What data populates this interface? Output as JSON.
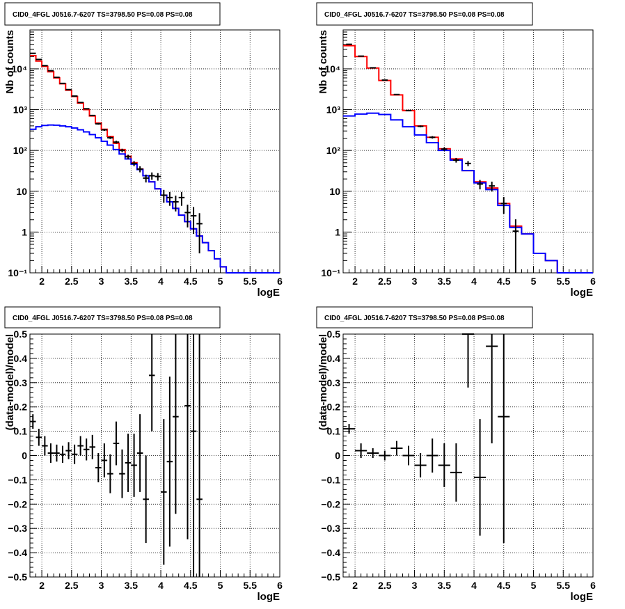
{
  "chart_data": [
    {
      "type": "histogram",
      "title": "CID0_4FGL J0516.7-6207 TS=3798.50 PS=0.08 PS=0.08",
      "xlabel": "logE",
      "ylabel": "Nb of counts",
      "yscale": "log",
      "xlim": [
        1.8,
        6.0
      ],
      "ylim": [
        0.1,
        90000
      ],
      "grid": true,
      "xticks": [
        "2",
        "2.5",
        "3",
        "3.5",
        "4",
        "4.5",
        "5",
        "5.5",
        "6"
      ],
      "yticks": [
        "10⁻¹",
        "1",
        "10",
        "10²",
        "10³",
        "10⁴"
      ],
      "bin_edges": [
        1.8,
        1.9,
        2.0,
        2.1,
        2.2,
        2.3,
        2.4,
        2.5,
        2.6,
        2.7,
        2.8,
        2.9,
        3.0,
        3.1,
        3.2,
        3.3,
        3.4,
        3.5,
        3.6,
        3.7,
        3.8,
        3.9,
        4.0,
        4.1,
        4.2,
        4.3,
        4.4,
        4.5,
        4.6,
        4.7,
        4.8,
        4.9,
        5.0,
        5.1,
        5.2,
        5.3,
        5.4,
        5.5,
        5.6,
        5.7,
        5.8,
        5.9,
        6.0
      ],
      "series": [
        {
          "color": "#ff0000",
          "style": "step",
          "values": [
            21000,
            15500,
            11500,
            8500,
            6000,
            4300,
            3000,
            2100,
            1450,
            1000,
            700,
            470,
            330,
            220,
            150,
            105,
            72,
            50,
            35,
            24,
            17,
            11.5,
            8,
            5.5,
            3.8,
            2.6,
            1.8,
            1.2,
            0.8,
            0.55,
            0.35,
            0.22,
            0.14,
            0.1,
            0.1,
            0.1,
            0.1,
            0.1,
            0.1,
            0.1,
            0.1,
            0.1
          ]
        },
        {
          "color": "#0000ff",
          "style": "step",
          "values": [
            330,
            380,
            410,
            420,
            415,
            400,
            380,
            355,
            320,
            285,
            245,
            205,
            168,
            135,
            105,
            82,
            62,
            46,
            34,
            24,
            17,
            11.5,
            8,
            5.5,
            3.8,
            2.6,
            1.8,
            1.2,
            0.8,
            0.55,
            0.35,
            0.22,
            0.14,
            0.1,
            0.1,
            0.1,
            0.1,
            0.1,
            0.1,
            0.1,
            0.1,
            0.1
          ]
        }
      ],
      "points": {
        "color": "#000000",
        "x": [
          1.85,
          1.95,
          2.05,
          2.15,
          2.25,
          2.35,
          2.45,
          2.55,
          2.65,
          2.75,
          2.85,
          2.95,
          3.05,
          3.15,
          3.25,
          3.35,
          3.45,
          3.55,
          3.65,
          3.75,
          3.85,
          3.95,
          4.05,
          4.15,
          4.25,
          4.35,
          4.45,
          4.55,
          4.65
        ],
        "y": [
          24000,
          17000,
          12000,
          9000,
          6200,
          4400,
          3100,
          2150,
          1500,
          1050,
          720,
          450,
          320,
          205,
          160,
          100,
          70,
          48,
          35,
          21,
          24,
          23,
          8,
          7,
          5.5,
          7,
          3,
          2.5,
          1.6
        ],
        "yerr": [
          155,
          130,
          110,
          95,
          79,
          66,
          56,
          46,
          39,
          32,
          27,
          21,
          18,
          14,
          13,
          10,
          8.4,
          6.9,
          5.9,
          4.6,
          4.9,
          4.8,
          2.8,
          2.6,
          2.3,
          2.6,
          1.7,
          1.6,
          1.3
        ]
      }
    },
    {
      "type": "histogram",
      "title": "CID0_4FGL J0516.7-6207 TS=3798.50 PS=0.08 PS=0.08",
      "xlabel": "logE",
      "ylabel": "Nb of counts",
      "yscale": "log",
      "xlim": [
        1.8,
        6.0
      ],
      "ylim": [
        0.1,
        90000
      ],
      "grid": true,
      "xticks": [
        "2",
        "2.5",
        "3",
        "3.5",
        "4",
        "4.5",
        "5",
        "5.5",
        "6"
      ],
      "yticks": [
        "10⁻¹",
        "1",
        "10",
        "10²",
        "10³",
        "10⁴"
      ],
      "bin_edges": [
        1.8,
        2.0,
        2.2,
        2.4,
        2.6,
        2.8,
        3.0,
        3.2,
        3.4,
        3.6,
        3.8,
        4.0,
        4.2,
        4.4,
        4.6,
        4.8,
        5.0,
        5.2,
        5.4,
        5.6,
        5.8,
        6.0
      ],
      "series": [
        {
          "color": "#ff0000",
          "style": "step",
          "values": [
            37000,
            20000,
            10500,
            5200,
            2300,
            950,
            400,
            210,
            110,
            62,
            32,
            17,
            12,
            5,
            1.4,
            0.9,
            0.3,
            0.2,
            0.1,
            0.1,
            0.1
          ]
        },
        {
          "color": "#0000ff",
          "style": "step",
          "values": [
            700,
            780,
            820,
            760,
            560,
            380,
            240,
            155,
            100,
            58,
            32,
            16,
            11,
            4.5,
            1.3,
            0.9,
            0.3,
            0.2,
            0.1,
            0.1,
            0.1
          ]
        }
      ],
      "points": {
        "color": "#000000",
        "x": [
          1.9,
          2.1,
          2.3,
          2.5,
          2.7,
          2.9,
          3.1,
          3.3,
          3.5,
          3.7,
          3.9,
          4.1,
          4.3,
          4.5,
          4.7
        ],
        "y": [
          40000,
          20500,
          10600,
          5300,
          2350,
          950,
          390,
          210,
          108,
          58,
          48,
          15,
          13.5,
          5,
          1.05
        ],
        "yerr": [
          200,
          143,
          103,
          73,
          48,
          31,
          20,
          14.5,
          10.4,
          7.6,
          6.9,
          3.9,
          3.7,
          2.2,
          1.0
        ]
      }
    },
    {
      "type": "scatter",
      "title": "CID0_4FGL J0516.7-6207 TS=3798.50 PS=0.08 PS=0.08",
      "xlabel": "logE",
      "ylabel": "(data-model)/model",
      "xlim": [
        1.8,
        6.0
      ],
      "ylim": [
        -0.5,
        0.5
      ],
      "grid": true,
      "xticks": [
        "2",
        "2.5",
        "3",
        "3.5",
        "4",
        "4.5",
        "5",
        "5.5",
        "6"
      ],
      "yticks": [
        "−0.5",
        "−0.4",
        "−0.3",
        "−0.2",
        "−0.1",
        "0",
        "0.1",
        "0.2",
        "0.3",
        "0.4",
        "0.5"
      ],
      "points": {
        "color": "#000000",
        "xerr": 0.05,
        "x": [
          1.85,
          1.95,
          2.05,
          2.15,
          2.25,
          2.35,
          2.45,
          2.55,
          2.65,
          2.75,
          2.85,
          2.95,
          3.05,
          3.15,
          3.25,
          3.35,
          3.45,
          3.55,
          3.65,
          3.75,
          3.85,
          4.05,
          4.15,
          4.25,
          4.45,
          4.55,
          4.65
        ],
        "y": [
          0.14,
          0.075,
          0.04,
          0.01,
          0.01,
          0.005,
          0.02,
          0.005,
          0.04,
          0.025,
          0.035,
          -0.05,
          -0.02,
          -0.075,
          0.05,
          -0.075,
          -0.03,
          -0.04,
          0.01,
          -0.18,
          0.33,
          -0.15,
          -0.025,
          0.16,
          0.205,
          0.1,
          -0.18
        ],
        "yerr": [
          0.03,
          0.035,
          0.04,
          0.04,
          0.035,
          0.035,
          0.035,
          0.04,
          0.04,
          0.045,
          0.05,
          0.06,
          0.07,
          0.08,
          0.09,
          0.1,
          0.12,
          0.13,
          0.16,
          0.18,
          0.23,
          0.3,
          0.35,
          0.4,
          0.55,
          0.6,
          0.7
        ]
      }
    },
    {
      "type": "scatter",
      "title": "CID0_4FGL J0516.7-6207 TS=3798.50 PS=0.08 PS=0.08",
      "xlabel": "logE",
      "ylabel": "(data-model)/model",
      "xlim": [
        1.8,
        6.0
      ],
      "ylim": [
        -0.5,
        0.5
      ],
      "grid": true,
      "xticks": [
        "2",
        "2.5",
        "3",
        "3.5",
        "4",
        "4.5",
        "5",
        "5.5",
        "6"
      ],
      "yticks": [
        "−0.5",
        "−0.4",
        "−0.3",
        "−0.2",
        "−0.1",
        "0",
        "0.1",
        "0.2",
        "0.3",
        "0.4",
        "0.5"
      ],
      "points": {
        "color": "#000000",
        "xerr": 0.1,
        "x": [
          1.9,
          2.1,
          2.3,
          2.5,
          2.7,
          2.9,
          3.1,
          3.3,
          3.5,
          3.7,
          3.9,
          4.1,
          4.3,
          4.5
        ],
        "y": [
          0.11,
          0.02,
          0.01,
          0.0,
          0.03,
          0.0,
          -0.04,
          0.0,
          -0.04,
          -0.07,
          0.5,
          -0.09,
          0.45,
          0.16
        ],
        "yerr": [
          0.02,
          0.03,
          0.02,
          0.02,
          0.03,
          0.04,
          0.05,
          0.07,
          0.09,
          0.12,
          0.22,
          0.24,
          0.4,
          0.52
        ]
      }
    }
  ]
}
